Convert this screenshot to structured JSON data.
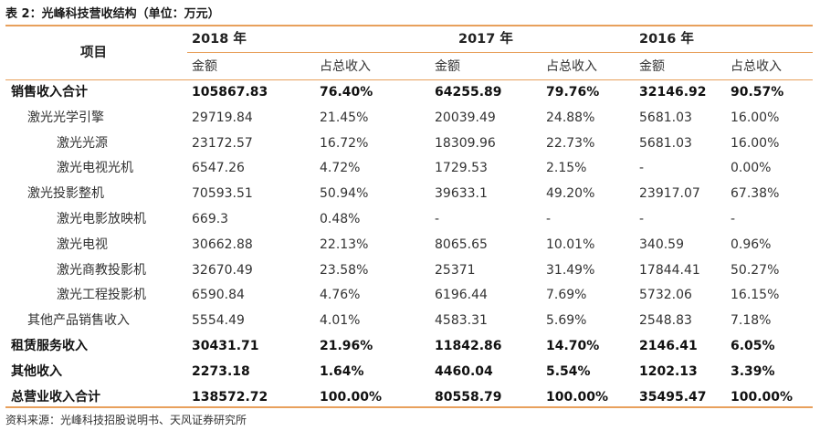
{
  "caption": "表 2：光峰科技营收结构（单位：万元）",
  "header": {
    "item": "项目",
    "years": [
      "2018 年",
      "2017 年",
      "2016 年"
    ],
    "amount": "金额",
    "share": "占总收入"
  },
  "rows": [
    {
      "name": "销售收入合计",
      "level": 0,
      "bold": true,
      "cells": [
        "105867.83",
        "76.40%",
        "64255.89",
        "79.76%",
        "32146.92",
        "90.57%"
      ]
    },
    {
      "name": "激光光学引擎",
      "level": 1,
      "bold": false,
      "cells": [
        "29719.84",
        "21.45%",
        "20039.49",
        "24.88%",
        "5681.03",
        "16.00%"
      ]
    },
    {
      "name": "激光光源",
      "level": 2,
      "bold": false,
      "cells": [
        "23172.57",
        "16.72%",
        "18309.96",
        "22.73%",
        "5681.03",
        "16.00%"
      ]
    },
    {
      "name": "激光电视光机",
      "level": 2,
      "bold": false,
      "cells": [
        "6547.26",
        "4.72%",
        "1729.53",
        "2.15%",
        "-",
        "0.00%"
      ]
    },
    {
      "name": "激光投影整机",
      "level": 1,
      "bold": false,
      "cells": [
        "70593.51",
        "50.94%",
        "39633.1",
        "49.20%",
        "23917.07",
        "67.38%"
      ]
    },
    {
      "name": "激光电影放映机",
      "level": 2,
      "bold": false,
      "cells": [
        "669.3",
        "0.48%",
        "-",
        "-",
        "-",
        "-"
      ]
    },
    {
      "name": "激光电视",
      "level": 2,
      "bold": false,
      "cells": [
        "30662.88",
        "22.13%",
        "8065.65",
        "10.01%",
        "340.59",
        "0.96%"
      ]
    },
    {
      "name": "激光商教投影机",
      "level": 2,
      "bold": false,
      "cells": [
        "32670.49",
        "23.58%",
        "25371",
        "31.49%",
        "17844.41",
        "50.27%"
      ]
    },
    {
      "name": "激光工程投影机",
      "level": 2,
      "bold": false,
      "cells": [
        "6590.84",
        "4.76%",
        "6196.44",
        "7.69%",
        "5732.06",
        "16.15%"
      ]
    },
    {
      "name": "其他产品销售收入",
      "level": 1,
      "bold": false,
      "cells": [
        "5554.49",
        "4.01%",
        "4583.31",
        "5.69%",
        "2548.83",
        "7.18%"
      ]
    },
    {
      "name": "租赁服务收入",
      "level": 0,
      "bold": true,
      "cells": [
        "30431.71",
        "21.96%",
        "11842.86",
        "14.70%",
        "2146.41",
        "6.05%"
      ]
    },
    {
      "name": "其他收入",
      "level": 0,
      "bold": true,
      "cells": [
        "2273.18",
        "1.64%",
        "4460.04",
        "5.54%",
        "1202.13",
        "3.39%"
      ]
    },
    {
      "name": "总营业收入合计",
      "level": 0,
      "bold": true,
      "cells": [
        "138572.72",
        "100.00%",
        "80558.79",
        "100.00%",
        "35495.47",
        "100.00%"
      ]
    }
  ],
  "source": "资料来源：光峰科技招股说明书、天风证券研究所",
  "colors": {
    "rule": "#e8a05c",
    "text": "#222222"
  }
}
